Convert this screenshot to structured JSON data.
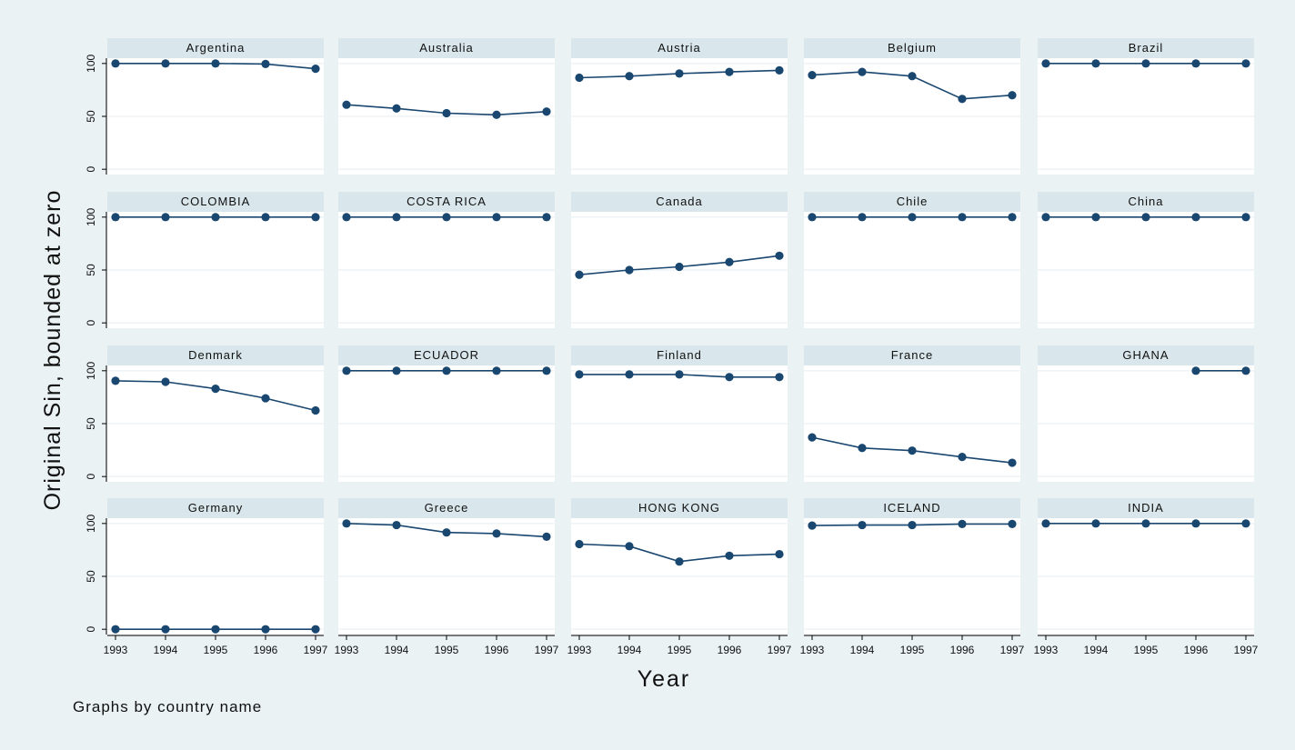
{
  "chart_data": {
    "type": "line",
    "ylabel": "Original Sin, bounded at zero",
    "xlabel": "Year",
    "note": "Graphs by country name",
    "x": [
      1993,
      1994,
      1995,
      1996,
      1997
    ],
    "x_tick_labels": [
      "1993",
      "1994",
      "1995",
      "1996",
      "1997"
    ],
    "y_ticks": [
      0,
      50,
      100
    ],
    "y_tick_labels": [
      "0",
      "50",
      "100"
    ],
    "ylim": [
      -5,
      105
    ],
    "series_color": "#1a476f",
    "grid": true,
    "panels": [
      {
        "name": "Argentina",
        "values": [
          100,
          100,
          100,
          99.5,
          95
        ]
      },
      {
        "name": "Australia",
        "values": [
          61,
          57.5,
          53,
          51.5,
          54.5
        ]
      },
      {
        "name": "Austria",
        "values": [
          86.5,
          88,
          90.5,
          92,
          93.5
        ]
      },
      {
        "name": "Belgium",
        "values": [
          89,
          92,
          88,
          66.5,
          70
        ]
      },
      {
        "name": "Brazil",
        "values": [
          100,
          100,
          100,
          100,
          100
        ]
      },
      {
        "name": "COLOMBIA",
        "values": [
          100,
          100,
          100,
          100,
          100
        ]
      },
      {
        "name": "COSTA RICA",
        "values": [
          100,
          100,
          100,
          100,
          100
        ]
      },
      {
        "name": "Canada",
        "values": [
          45.5,
          50,
          53,
          57.5,
          63.5
        ]
      },
      {
        "name": "Chile",
        "values": [
          100,
          100,
          100,
          100,
          100
        ]
      },
      {
        "name": "China",
        "values": [
          100,
          100,
          100,
          100,
          100
        ]
      },
      {
        "name": "Denmark",
        "values": [
          90.5,
          89.5,
          83,
          74,
          62.5
        ]
      },
      {
        "name": "ECUADOR",
        "values": [
          100,
          100,
          100,
          100,
          100
        ]
      },
      {
        "name": "Finland",
        "values": [
          96.5,
          96.5,
          96.5,
          94,
          94
        ]
      },
      {
        "name": "France",
        "values": [
          37,
          27,
          24.5,
          18.5,
          13
        ]
      },
      {
        "name": "GHANA",
        "values": [
          null,
          null,
          null,
          100,
          100
        ]
      },
      {
        "name": "Germany",
        "values": [
          0,
          0,
          0,
          0,
          0
        ]
      },
      {
        "name": "Greece",
        "values": [
          100,
          98.5,
          91.5,
          90.5,
          87.5
        ]
      },
      {
        "name": "HONG KONG",
        "values": [
          80.5,
          78.5,
          64,
          69.5,
          71
        ]
      },
      {
        "name": "ICELAND",
        "values": [
          98,
          98.5,
          98.5,
          99.5,
          99.5
        ]
      },
      {
        "name": "INDIA",
        "values": [
          100,
          100,
          100,
          100,
          100
        ]
      }
    ]
  }
}
